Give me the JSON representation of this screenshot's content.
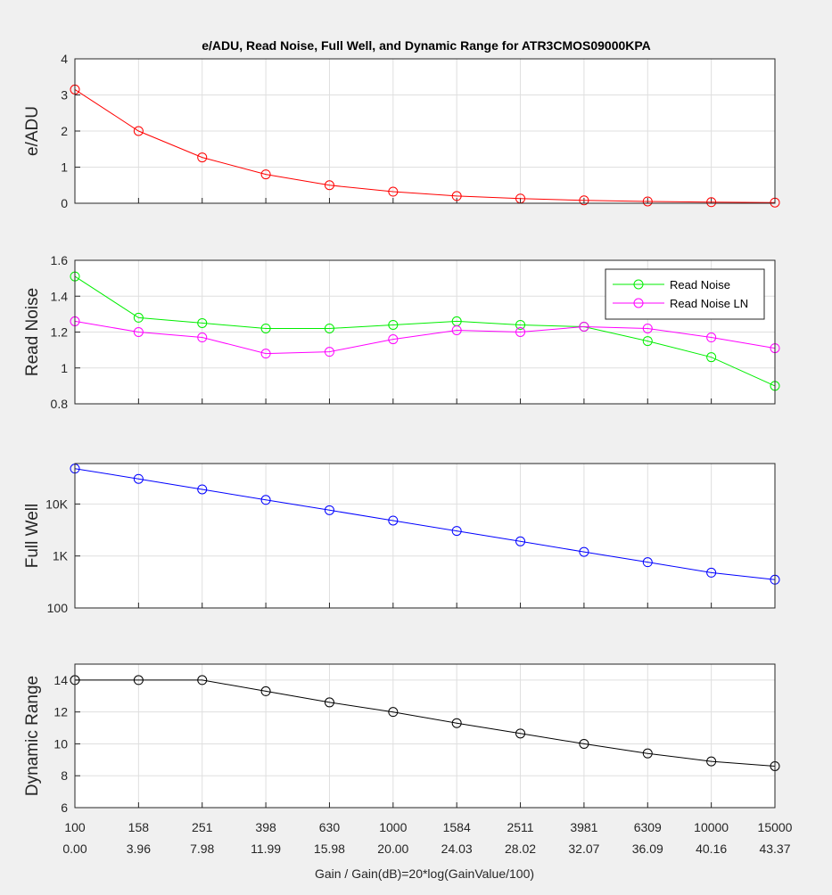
{
  "figure": {
    "title": "e/ADU, Read Noise, Full Well, and Dynamic Range for ATR3CMOS09000KPA",
    "xlabel": "Gain / Gain(dB)=20*log(GainValue/100)",
    "gain_labels": [
      "100",
      "158",
      "251",
      "398",
      "630",
      "1000",
      "1584",
      "2511",
      "3981",
      "6309",
      "10000",
      "15000"
    ],
    "gain_db_labels": [
      "0.00",
      "3.96",
      "7.98",
      "11.99",
      "15.98",
      "20.00",
      "24.03",
      "28.02",
      "32.07",
      "36.09",
      "40.16",
      "43.37"
    ]
  },
  "chart_data": [
    {
      "type": "line",
      "ylabel": "e/ADU",
      "ylim": [
        0,
        4
      ],
      "yticks": [
        0,
        1,
        2,
        3,
        4
      ],
      "ytick_labels": [
        "0",
        "1",
        "2",
        "3",
        "4"
      ],
      "scale": "linear",
      "grid": true,
      "series": [
        {
          "color": "#ff0000",
          "values": [
            3.15,
            2.0,
            1.27,
            0.8,
            0.5,
            0.32,
            0.2,
            0.13,
            0.08,
            0.05,
            0.03,
            0.02
          ]
        }
      ]
    },
    {
      "type": "line",
      "ylabel": "Read Noise",
      "ylim": [
        0.8,
        1.6
      ],
      "yticks": [
        0.8,
        1.0,
        1.2,
        1.4,
        1.6
      ],
      "ytick_labels": [
        "0.8",
        "1",
        "1.2",
        "1.4",
        "1.6"
      ],
      "scale": "linear",
      "grid": true,
      "legend": "top-right",
      "series": [
        {
          "name": "Read Noise",
          "color": "#00ee00",
          "values": [
            1.51,
            1.28,
            1.25,
            1.22,
            1.22,
            1.24,
            1.26,
            1.24,
            1.23,
            1.15,
            1.06,
            0.9
          ]
        },
        {
          "name": "Read Noise LN",
          "color": "#ff00ff",
          "values": [
            1.26,
            1.2,
            1.17,
            1.08,
            1.09,
            1.16,
            1.21,
            1.2,
            1.23,
            1.22,
            1.17,
            1.11
          ]
        }
      ]
    },
    {
      "type": "line",
      "ylabel": "Full Well",
      "ylim": [
        100,
        60000
      ],
      "yticks": [
        100,
        1000,
        10000
      ],
      "ytick_labels": [
        "100",
        "1K",
        "10K"
      ],
      "scale": "log",
      "grid": true,
      "series": [
        {
          "color": "#0000ff",
          "values": [
            48000,
            30400,
            19100,
            12000,
            7600,
            4800,
            3030,
            1910,
            1200,
            760,
            478,
            350
          ]
        }
      ]
    },
    {
      "type": "line",
      "ylabel": "Dynamic Range",
      "ylim": [
        6,
        15
      ],
      "yticks": [
        6,
        8,
        10,
        12,
        14
      ],
      "ytick_labels": [
        "6",
        "8",
        "10",
        "12",
        "14"
      ],
      "scale": "linear",
      "grid": true,
      "series": [
        {
          "color": "#000000",
          "values": [
            14.0,
            14.0,
            14.0,
            13.3,
            12.6,
            12.0,
            11.3,
            10.65,
            10.0,
            9.4,
            8.9,
            8.6
          ]
        }
      ]
    }
  ]
}
